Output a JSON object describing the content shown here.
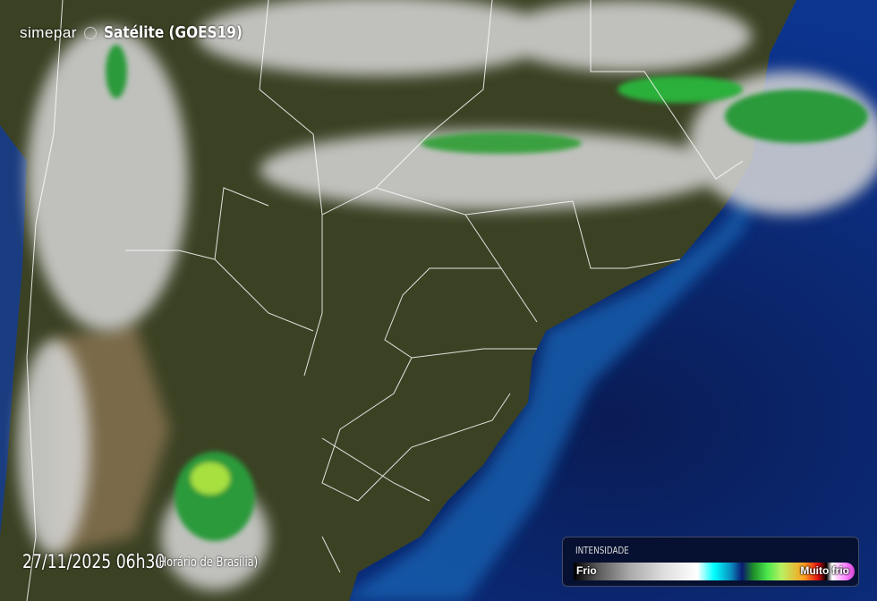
{
  "header": {
    "logo": "simepar",
    "title": "Satélite (GOES19)"
  },
  "timestamp": {
    "datetime": "27/11/2025 06h30",
    "timezone": "(Horário de Brasília)"
  },
  "legend": {
    "title": "INTENSIDADE",
    "low_label": "Frio",
    "high_label": "Muito frio",
    "colors": [
      "#000000",
      "#ffffff",
      "#00ffff",
      "#0a1a70",
      "#4de84d",
      "#ffa020",
      "#e01010",
      "#ff80ff"
    ]
  },
  "map": {
    "land_color": "#3b4224",
    "ocean_color": "#0c2a6a",
    "cloud_color": "#d8d8d8",
    "border_color": "#ffffff"
  }
}
